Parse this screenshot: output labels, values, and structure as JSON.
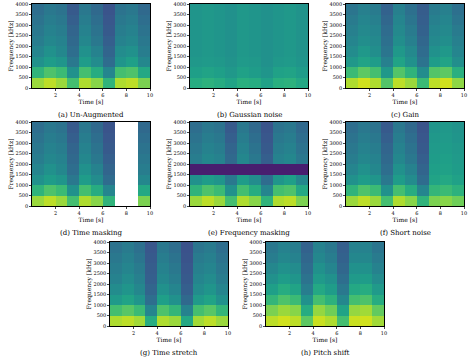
{
  "chart_data": [
    {
      "type": "heatmap",
      "title": "(a) Un-Augmented",
      "x_label": "Time [s]",
      "y_label": "Frequency [kHz]",
      "xlim": [
        0,
        10
      ],
      "ylim": [
        0,
        4000
      ],
      "xticks": [
        2,
        4,
        6,
        8,
        10
      ],
      "yticks": [
        0,
        500,
        1000,
        1500,
        2000,
        2500,
        3000,
        3500,
        4000
      ],
      "x": [
        0.5,
        1.5,
        2.5,
        3.5,
        4.5,
        5.5,
        6.5,
        7.5,
        8.5,
        9.5
      ],
      "y": [
        250,
        750,
        1250,
        1750,
        2250,
        2750,
        3250,
        3750
      ],
      "zlim": [
        0,
        1
      ],
      "cells": [
        [
          0.85,
          0.9,
          0.85,
          0.7,
          0.88,
          0.82,
          0.65,
          0.88,
          0.9,
          0.8
        ],
        [
          0.65,
          0.72,
          0.68,
          0.5,
          0.7,
          0.62,
          0.45,
          0.7,
          0.72,
          0.6
        ],
        [
          0.5,
          0.55,
          0.52,
          0.4,
          0.55,
          0.48,
          0.35,
          0.52,
          0.56,
          0.46
        ],
        [
          0.45,
          0.5,
          0.46,
          0.36,
          0.5,
          0.44,
          0.32,
          0.48,
          0.5,
          0.42
        ],
        [
          0.42,
          0.46,
          0.44,
          0.34,
          0.46,
          0.4,
          0.3,
          0.44,
          0.46,
          0.4
        ],
        [
          0.4,
          0.44,
          0.42,
          0.32,
          0.44,
          0.38,
          0.28,
          0.42,
          0.44,
          0.38
        ],
        [
          0.38,
          0.42,
          0.4,
          0.3,
          0.42,
          0.36,
          0.27,
          0.4,
          0.42,
          0.36
        ],
        [
          0.36,
          0.4,
          0.38,
          0.28,
          0.4,
          0.34,
          0.26,
          0.38,
          0.4,
          0.34
        ]
      ]
    },
    {
      "type": "heatmap",
      "title": "(b) Gaussian noise",
      "x_label": "Time [s]",
      "y_label": "Frequency [kHz]",
      "xlim": [
        0,
        10
      ],
      "ylim": [
        0,
        4000
      ],
      "xticks": [
        2,
        4,
        6,
        8,
        10
      ],
      "yticks": [
        0,
        500,
        1000,
        1500,
        2000,
        2500,
        3000,
        3500,
        4000
      ],
      "x": [
        0.5,
        1.5,
        2.5,
        3.5,
        4.5,
        5.5,
        6.5,
        7.5,
        8.5,
        9.5
      ],
      "y": [
        250,
        750,
        1250,
        1750,
        2250,
        2750,
        3250,
        3750
      ],
      "zlim": [
        0,
        1
      ],
      "cells": [
        [
          0.62,
          0.64,
          0.62,
          0.58,
          0.63,
          0.62,
          0.57,
          0.63,
          0.64,
          0.6
        ],
        [
          0.56,
          0.58,
          0.56,
          0.53,
          0.57,
          0.55,
          0.52,
          0.57,
          0.58,
          0.55
        ],
        [
          0.53,
          0.54,
          0.53,
          0.51,
          0.54,
          0.53,
          0.5,
          0.53,
          0.54,
          0.52
        ],
        [
          0.52,
          0.53,
          0.52,
          0.5,
          0.53,
          0.52,
          0.5,
          0.52,
          0.53,
          0.51
        ],
        [
          0.52,
          0.53,
          0.52,
          0.5,
          0.53,
          0.52,
          0.5,
          0.52,
          0.53,
          0.51
        ],
        [
          0.52,
          0.53,
          0.52,
          0.5,
          0.53,
          0.52,
          0.5,
          0.52,
          0.53,
          0.51
        ],
        [
          0.52,
          0.53,
          0.52,
          0.5,
          0.53,
          0.52,
          0.5,
          0.52,
          0.53,
          0.51
        ],
        [
          0.52,
          0.53,
          0.52,
          0.5,
          0.53,
          0.52,
          0.5,
          0.52,
          0.53,
          0.51
        ]
      ]
    },
    {
      "type": "heatmap",
      "title": "(c) Gain",
      "x_label": "Time [s]",
      "y_label": "Frequency [kHz]",
      "xlim": [
        0,
        10
      ],
      "ylim": [
        0,
        4000
      ],
      "xticks": [
        2,
        4,
        6,
        8,
        10
      ],
      "yticks": [
        0,
        500,
        1000,
        1500,
        2000,
        2500,
        3000,
        3500,
        4000
      ],
      "x": [
        0.5,
        1.5,
        2.5,
        3.5,
        4.5,
        5.5,
        6.5,
        7.5,
        8.5,
        9.5
      ],
      "y": [
        250,
        750,
        1250,
        1750,
        2250,
        2750,
        3250,
        3750
      ],
      "zlim": [
        0,
        1
      ],
      "cells": [
        [
          0.88,
          0.93,
          0.88,
          0.73,
          0.9,
          0.85,
          0.68,
          0.9,
          0.93,
          0.83
        ],
        [
          0.68,
          0.75,
          0.7,
          0.53,
          0.73,
          0.65,
          0.48,
          0.73,
          0.75,
          0.63
        ],
        [
          0.53,
          0.58,
          0.55,
          0.43,
          0.58,
          0.5,
          0.38,
          0.55,
          0.58,
          0.49
        ],
        [
          0.48,
          0.53,
          0.49,
          0.39,
          0.53,
          0.47,
          0.35,
          0.5,
          0.53,
          0.45
        ],
        [
          0.45,
          0.49,
          0.47,
          0.37,
          0.49,
          0.43,
          0.33,
          0.47,
          0.49,
          0.43
        ],
        [
          0.43,
          0.47,
          0.45,
          0.35,
          0.47,
          0.41,
          0.31,
          0.45,
          0.47,
          0.41
        ],
        [
          0.41,
          0.45,
          0.43,
          0.33,
          0.45,
          0.39,
          0.3,
          0.43,
          0.45,
          0.39
        ],
        [
          0.39,
          0.43,
          0.41,
          0.31,
          0.43,
          0.37,
          0.29,
          0.41,
          0.43,
          0.37
        ]
      ]
    },
    {
      "type": "heatmap",
      "title": "(d) Time masking",
      "x_label": "Time [s]",
      "y_label": "Frequency [kHz]",
      "xlim": [
        0,
        10
      ],
      "ylim": [
        0,
        4000
      ],
      "xticks": [
        2,
        4,
        6,
        8,
        10
      ],
      "yticks": [
        0,
        500,
        1000,
        1500,
        2000,
        2500,
        3000,
        3500,
        4000
      ],
      "x": [
        0.5,
        1.5,
        2.5,
        3.5,
        4.5,
        5.5,
        6.5,
        7.5,
        8.5,
        9.5
      ],
      "y": [
        250,
        750,
        1250,
        1750,
        2250,
        2750,
        3250,
        3750
      ],
      "zlim": [
        0,
        1
      ],
      "cells": [
        [
          0.85,
          0.9,
          0.85,
          0.7,
          0.88,
          0.82,
          0.65,
          null,
          null,
          0.8
        ],
        [
          0.65,
          0.72,
          0.68,
          0.5,
          0.7,
          0.62,
          0.45,
          null,
          null,
          0.6
        ],
        [
          0.5,
          0.55,
          0.52,
          0.4,
          0.55,
          0.48,
          0.35,
          null,
          null,
          0.46
        ],
        [
          0.45,
          0.5,
          0.46,
          0.36,
          0.5,
          0.44,
          0.32,
          null,
          null,
          0.42
        ],
        [
          0.42,
          0.46,
          0.44,
          0.34,
          0.46,
          0.4,
          0.3,
          null,
          null,
          0.4
        ],
        [
          0.4,
          0.44,
          0.42,
          0.32,
          0.44,
          0.38,
          0.28,
          null,
          null,
          0.38
        ],
        [
          0.38,
          0.42,
          0.4,
          0.3,
          0.42,
          0.36,
          0.27,
          null,
          null,
          0.36
        ],
        [
          0.36,
          0.4,
          0.38,
          0.28,
          0.4,
          0.34,
          0.26,
          null,
          null,
          0.34
        ]
      ]
    },
    {
      "type": "heatmap",
      "title": "(e) Frequency masking",
      "x_label": "Time [s]",
      "y_label": "Frequency [kHz]",
      "xlim": [
        0,
        10
      ],
      "ylim": [
        0,
        4000
      ],
      "xticks": [
        2,
        4,
        6,
        8,
        10
      ],
      "yticks": [
        0,
        500,
        1000,
        1500,
        2000,
        2500,
        3000,
        3500,
        4000
      ],
      "x": [
        0.5,
        1.5,
        2.5,
        3.5,
        4.5,
        5.5,
        6.5,
        7.5,
        8.5,
        9.5
      ],
      "y": [
        250,
        750,
        1250,
        1750,
        2250,
        2750,
        3250,
        3750
      ],
      "zlim": [
        0,
        1
      ],
      "cells": [
        [
          0.85,
          0.9,
          0.85,
          0.7,
          0.88,
          0.82,
          0.65,
          0.88,
          0.9,
          0.8
        ],
        [
          0.65,
          0.72,
          0.68,
          0.5,
          0.7,
          0.62,
          0.45,
          0.7,
          0.72,
          0.6
        ],
        [
          0.5,
          0.55,
          0.52,
          0.4,
          0.55,
          0.48,
          0.35,
          0.52,
          0.56,
          0.46
        ],
        [
          0.08,
          0.08,
          0.08,
          0.08,
          0.08,
          0.08,
          0.08,
          0.08,
          0.08,
          0.08
        ],
        [
          0.42,
          0.46,
          0.44,
          0.34,
          0.46,
          0.4,
          0.3,
          0.44,
          0.46,
          0.4
        ],
        [
          0.4,
          0.44,
          0.42,
          0.32,
          0.44,
          0.38,
          0.28,
          0.42,
          0.44,
          0.38
        ],
        [
          0.38,
          0.42,
          0.4,
          0.3,
          0.42,
          0.36,
          0.27,
          0.4,
          0.42,
          0.36
        ],
        [
          0.36,
          0.4,
          0.38,
          0.28,
          0.4,
          0.34,
          0.26,
          0.38,
          0.4,
          0.34
        ]
      ]
    },
    {
      "type": "heatmap",
      "title": "(f) Short noise",
      "x_label": "Time [s]",
      "y_label": "Frequency [kHz]",
      "xlim": [
        0,
        10
      ],
      "ylim": [
        0,
        4000
      ],
      "xticks": [
        2,
        4,
        6,
        8,
        10
      ],
      "yticks": [
        0,
        500,
        1000,
        1500,
        2000,
        2500,
        3000,
        3500,
        4000
      ],
      "x": [
        0.5,
        1.5,
        2.5,
        3.5,
        4.5,
        5.5,
        6.5,
        7.5,
        8.5,
        9.5
      ],
      "y": [
        250,
        750,
        1250,
        1750,
        2250,
        2750,
        3250,
        3750
      ],
      "zlim": [
        0,
        1
      ],
      "cells": [
        [
          0.85,
          0.9,
          0.85,
          0.7,
          0.88,
          0.82,
          0.65,
          0.8,
          0.82,
          0.78
        ],
        [
          0.65,
          0.72,
          0.68,
          0.5,
          0.7,
          0.62,
          0.45,
          0.66,
          0.68,
          0.64
        ],
        [
          0.5,
          0.55,
          0.52,
          0.4,
          0.55,
          0.48,
          0.35,
          0.58,
          0.6,
          0.57
        ],
        [
          0.45,
          0.5,
          0.46,
          0.36,
          0.5,
          0.44,
          0.32,
          0.56,
          0.57,
          0.55
        ],
        [
          0.42,
          0.46,
          0.44,
          0.34,
          0.46,
          0.4,
          0.3,
          0.55,
          0.56,
          0.54
        ],
        [
          0.4,
          0.44,
          0.42,
          0.32,
          0.44,
          0.38,
          0.28,
          0.54,
          0.55,
          0.53
        ],
        [
          0.38,
          0.42,
          0.4,
          0.3,
          0.42,
          0.36,
          0.27,
          0.53,
          0.54,
          0.52
        ],
        [
          0.36,
          0.4,
          0.38,
          0.28,
          0.4,
          0.34,
          0.26,
          0.52,
          0.53,
          0.51
        ]
      ]
    },
    {
      "type": "heatmap",
      "title": "(g) Time stretch",
      "x_label": "Time [s]",
      "y_label": "Frequency [kHz]",
      "xlim": [
        0,
        10
      ],
      "ylim": [
        0,
        4000
      ],
      "xticks": [
        2,
        4,
        6,
        8,
        10
      ],
      "yticks": [
        0,
        500,
        1000,
        1500,
        2000,
        2500,
        3000,
        3500,
        4000
      ],
      "x": [
        0.5,
        1.5,
        2.5,
        3.5,
        4.5,
        5.5,
        6.5,
        7.5,
        8.5,
        9.5
      ],
      "y": [
        250,
        750,
        1250,
        1750,
        2250,
        2750,
        3250,
        3750
      ],
      "zlim": [
        0,
        1
      ],
      "cells": [
        [
          0.88,
          0.9,
          0.86,
          0.62,
          0.88,
          0.85,
          0.6,
          0.86,
          0.9,
          0.85
        ],
        [
          0.7,
          0.74,
          0.68,
          0.45,
          0.72,
          0.66,
          0.44,
          0.7,
          0.74,
          0.66
        ],
        [
          0.54,
          0.58,
          0.52,
          0.36,
          0.56,
          0.5,
          0.34,
          0.54,
          0.58,
          0.5
        ],
        [
          0.48,
          0.52,
          0.46,
          0.32,
          0.5,
          0.45,
          0.3,
          0.48,
          0.52,
          0.45
        ],
        [
          0.44,
          0.48,
          0.43,
          0.3,
          0.46,
          0.42,
          0.28,
          0.45,
          0.48,
          0.42
        ],
        [
          0.42,
          0.45,
          0.41,
          0.29,
          0.44,
          0.4,
          0.27,
          0.43,
          0.45,
          0.4
        ],
        [
          0.4,
          0.43,
          0.39,
          0.28,
          0.42,
          0.38,
          0.26,
          0.41,
          0.43,
          0.38
        ],
        [
          0.38,
          0.41,
          0.37,
          0.27,
          0.4,
          0.36,
          0.25,
          0.39,
          0.41,
          0.36
        ]
      ]
    },
    {
      "type": "heatmap",
      "title": "(h) Pitch shift",
      "x_label": "Time [s]",
      "y_label": "Frequency [kHz]",
      "xlim": [
        0,
        10
      ],
      "ylim": [
        0,
        4000
      ],
      "xticks": [
        2,
        4,
        6,
        8,
        10
      ],
      "yticks": [
        0,
        500,
        1000,
        1500,
        2000,
        2500,
        3000,
        3500,
        4000
      ],
      "x": [
        0.5,
        1.5,
        2.5,
        3.5,
        4.5,
        5.5,
        6.5,
        7.5,
        8.5,
        9.5
      ],
      "y": [
        250,
        750,
        1250,
        1750,
        2250,
        2750,
        3250,
        3750
      ],
      "zlim": [
        0,
        1
      ],
      "cells": [
        [
          0.9,
          0.93,
          0.9,
          0.75,
          0.92,
          0.88,
          0.7,
          0.92,
          0.93,
          0.86
        ],
        [
          0.8,
          0.85,
          0.82,
          0.62,
          0.84,
          0.78,
          0.58,
          0.84,
          0.86,
          0.76
        ],
        [
          0.66,
          0.72,
          0.68,
          0.5,
          0.7,
          0.64,
          0.46,
          0.7,
          0.72,
          0.62
        ],
        [
          0.56,
          0.62,
          0.58,
          0.42,
          0.6,
          0.55,
          0.4,
          0.6,
          0.62,
          0.54
        ],
        [
          0.5,
          0.55,
          0.52,
          0.38,
          0.54,
          0.5,
          0.36,
          0.54,
          0.55,
          0.48
        ],
        [
          0.46,
          0.5,
          0.48,
          0.35,
          0.5,
          0.45,
          0.33,
          0.5,
          0.5,
          0.44
        ],
        [
          0.42,
          0.46,
          0.44,
          0.33,
          0.46,
          0.42,
          0.31,
          0.46,
          0.46,
          0.41
        ],
        [
          0.4,
          0.44,
          0.42,
          0.31,
          0.44,
          0.4,
          0.3,
          0.44,
          0.44,
          0.39
        ]
      ]
    }
  ]
}
